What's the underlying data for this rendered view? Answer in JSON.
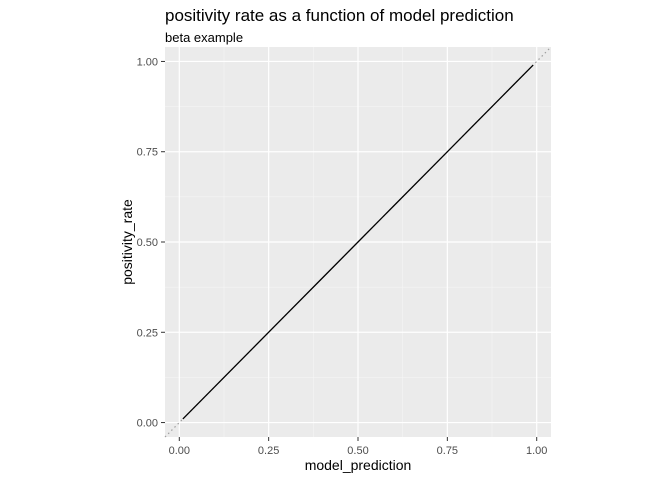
{
  "chart_data": {
    "type": "line",
    "title": "positivity rate as a function of model prediction",
    "subtitle": "beta example",
    "xlabel": "model_prediction",
    "ylabel": "positivity_rate",
    "xlim": [
      -0.04,
      1.04
    ],
    "ylim": [
      -0.04,
      1.04
    ],
    "x_ticks": [
      0.0,
      0.25,
      0.5,
      0.75,
      1.0
    ],
    "x_tick_labels": [
      "0.00",
      "0.25",
      "0.50",
      "0.75",
      "1.00"
    ],
    "y_ticks": [
      0.0,
      0.25,
      0.5,
      0.75,
      1.0
    ],
    "y_tick_labels": [
      "0.00",
      "0.25",
      "0.50",
      "0.75",
      "1.00"
    ],
    "grid": true,
    "legend": "none",
    "colors": {
      "panel_background": "#EBEBEB",
      "grid_major": "#FFFFFF",
      "grid_minor": "#F5F5F5",
      "line": "#000000",
      "reference_line": "#9E9E9E",
      "text": "#000000",
      "tick_text": "#4D4D4D",
      "tick_mark": "#333333"
    },
    "reference_line": {
      "style": "dotted",
      "x": [
        -0.04,
        1.04
      ],
      "y": [
        -0.04,
        1.04
      ]
    },
    "series": [
      {
        "x": [
          0.01,
          0.1,
          0.2,
          0.3,
          0.4,
          0.5,
          0.6,
          0.7,
          0.8,
          0.9,
          0.99
        ],
        "y": [
          0.01,
          0.1,
          0.2,
          0.3,
          0.4,
          0.5,
          0.6,
          0.7,
          0.8,
          0.9,
          0.99
        ]
      }
    ]
  }
}
